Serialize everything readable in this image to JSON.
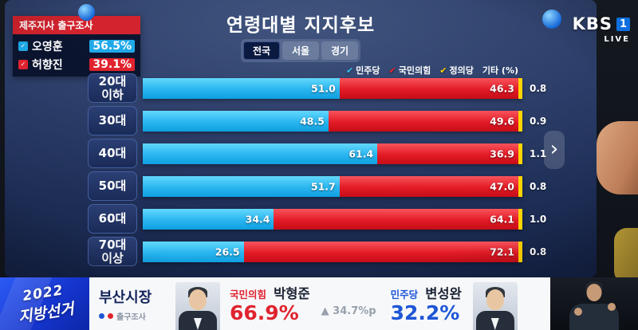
{
  "broadcaster": {
    "name": "KBS",
    "channel": "1",
    "live_label": "LIVE"
  },
  "header": {
    "title": "연령대별 지지후보"
  },
  "tabs": [
    {
      "label": "전국",
      "active": true
    },
    {
      "label": "서울",
      "active": false
    },
    {
      "label": "경기",
      "active": false
    }
  ],
  "legend": [
    {
      "label": "민주당",
      "color": "#35c4f4"
    },
    {
      "label": "국민의힘",
      "color": "#e8232e"
    },
    {
      "label": "정의당",
      "color": "#ffd400"
    },
    {
      "label": "기타 (%)",
      "color": null
    }
  ],
  "exit_poll_panel": {
    "title": "제주지사 출구조사",
    "rows": [
      {
        "name": "오영훈",
        "value": "56.5%",
        "color": "#1fa9e8"
      },
      {
        "name": "허향진",
        "value": "39.1%",
        "color": "#e0232e"
      }
    ]
  },
  "chart_data": {
    "type": "bar",
    "orientation": "horizontal",
    "title": "연령대별 지지후보",
    "unit": "%",
    "categories": [
      "20대 이하",
      "30대",
      "40대",
      "50대",
      "60대",
      "70대 이상"
    ],
    "series": [
      {
        "name": "민주당",
        "color": "#29b5ef",
        "values": [
          51.0,
          48.5,
          61.4,
          51.7,
          34.4,
          26.5
        ]
      },
      {
        "name": "국민의힘",
        "color": "#e31b26",
        "values": [
          46.3,
          49.6,
          36.9,
          47.0,
          64.1,
          72.1
        ]
      },
      {
        "name": "기타",
        "color": "#ffffff",
        "values": [
          0.8,
          0.9,
          1.1,
          0.8,
          1.0,
          0.8
        ]
      }
    ],
    "justice_party_marker": {
      "name": "정의당",
      "color": "#ffd400"
    }
  },
  "ticker": {
    "election_logo": {
      "year": "2022",
      "name": "지방선거"
    },
    "race_title": "부산시장",
    "poll_badge": "출구조사",
    "winner": {
      "party": "국민의힘",
      "name": "박형준",
      "value": "66.9%",
      "color": "#e0232e"
    },
    "margin": "▲ 34.7%p",
    "runner_up": {
      "party": "민주당",
      "name": "변성완",
      "value": "32.2%",
      "color": "#1e56d6"
    }
  }
}
